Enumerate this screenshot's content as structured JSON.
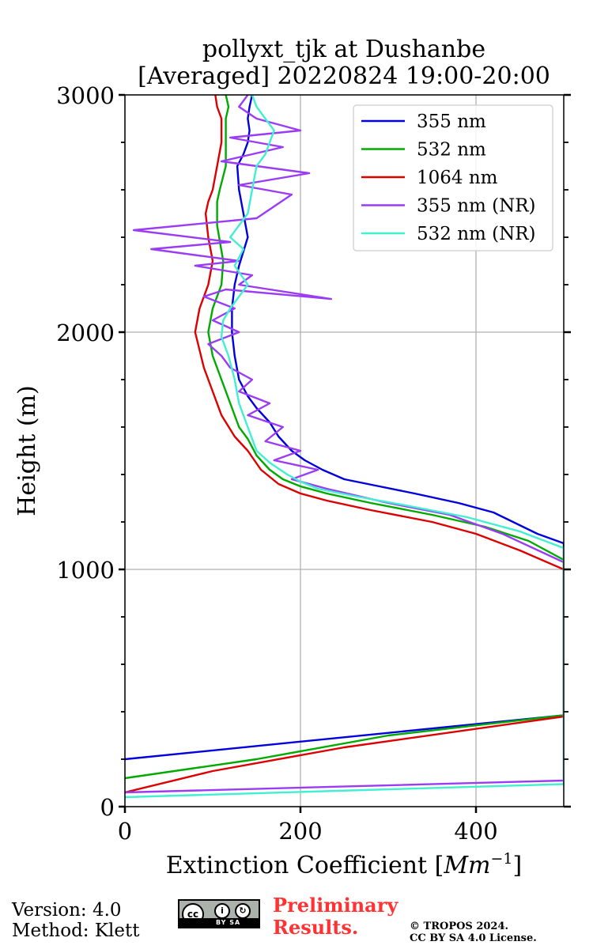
{
  "chart_data": {
    "type": "line",
    "title": [
      "pollyxt_tjk at Dushanbe",
      "[Averaged] 20220824 19:00-20:00"
    ],
    "xlabel": "Extinction Coefficient [",
    "xlabel_unit": "Mm",
    "xlabel_exp": "−1",
    "xlabel_close": "]",
    "ylabel": "Height (m)",
    "xlim": [
      0,
      500
    ],
    "ylim": [
      0,
      3000
    ],
    "xticks": [
      0,
      200,
      400
    ],
    "yticks": [
      0,
      1000,
      2000,
      3000
    ],
    "grid": true,
    "legend_position": "top-right",
    "series": [
      {
        "name": "355 nm",
        "color": "#0000dd",
        "x": [
          0,
          500,
          500,
          470,
          420,
          380,
          330,
          290,
          250,
          225,
          205,
          190,
          175,
          165,
          150,
          140,
          130,
          125,
          122,
          122,
          125,
          130,
          140,
          135,
          130,
          128,
          135,
          140,
          142,
          140,
          142,
          145
        ],
        "y": [
          200,
          385,
          1110,
          1150,
          1240,
          1280,
          1320,
          1350,
          1380,
          1420,
          1460,
          1500,
          1560,
          1620,
          1680,
          1730,
          1800,
          1900,
          2000,
          2100,
          2200,
          2280,
          2400,
          2500,
          2600,
          2700,
          2750,
          2800,
          2850,
          2900,
          2950,
          3000
        ]
      },
      {
        "name": "532 nm",
        "color": "#00aa00",
        "x": [
          0,
          150,
          300,
          500,
          500,
          460,
          410,
          350,
          280,
          230,
          200,
          180,
          165,
          150,
          140,
          130,
          120,
          110,
          100,
          95,
          100,
          110,
          112,
          105,
          105,
          108,
          115,
          115,
          115,
          118,
          115
        ],
        "y": [
          120,
          200,
          300,
          385,
          1040,
          1120,
          1180,
          1230,
          1280,
          1320,
          1350,
          1380,
          1420,
          1480,
          1550,
          1600,
          1700,
          1800,
          1900,
          2000,
          2100,
          2200,
          2300,
          2450,
          2550,
          2600,
          2700,
          2800,
          2900,
          2950,
          3000
        ]
      },
      {
        "name": "1064 nm",
        "color": "#dd0000",
        "x": [
          0,
          100,
          250,
          500,
          500,
          450,
          400,
          350,
          280,
          230,
          200,
          175,
          155,
          140,
          125,
          110,
          100,
          90,
          80,
          85,
          95,
          100,
          95,
          92,
          95,
          100,
          105,
          110,
          110,
          105,
          103
        ],
        "y": [
          60,
          150,
          250,
          380,
          1000,
          1080,
          1150,
          1200,
          1250,
          1290,
          1320,
          1360,
          1420,
          1500,
          1560,
          1650,
          1750,
          1850,
          2000,
          2100,
          2200,
          2300,
          2400,
          2500,
          2550,
          2600,
          2700,
          2800,
          2900,
          2950,
          3000
        ]
      },
      {
        "name": "355 nm (NR)",
        "color": "#9b3cf5",
        "x": [
          0,
          500,
          500,
          430,
          370,
          300,
          230,
          190,
          220,
          170,
          200,
          160,
          180,
          140,
          165,
          130,
          145,
          120,
          110,
          95,
          130,
          100,
          125,
          90,
          115,
          235,
          130,
          145,
          80,
          130,
          30,
          120,
          10,
          150,
          170,
          190,
          130,
          210,
          110,
          180,
          120,
          200,
          150,
          130,
          140
        ],
        "y": [
          60,
          110,
          1030,
          1150,
          1230,
          1280,
          1340,
          1380,
          1420,
          1460,
          1500,
          1540,
          1600,
          1650,
          1700,
          1750,
          1800,
          1850,
          1900,
          1950,
          2000,
          2050,
          2100,
          2150,
          2180,
          2140,
          2200,
          2240,
          2280,
          2300,
          2350,
          2380,
          2430,
          2480,
          2530,
          2580,
          2620,
          2670,
          2720,
          2780,
          2820,
          2850,
          2900,
          2950,
          3000
        ]
      },
      {
        "name": "532 nm (NR)",
        "color": "#40f0d0",
        "x": [
          0,
          500,
          500,
          450,
          390,
          320,
          260,
          220,
          200,
          185,
          165,
          150,
          140,
          130,
          125,
          118,
          110,
          112,
          120,
          130,
          140,
          125,
          135,
          120,
          140,
          145,
          150,
          160,
          170,
          160,
          150,
          145
        ],
        "y": [
          40,
          95,
          1090,
          1160,
          1220,
          1270,
          1310,
          1340,
          1370,
          1400,
          1450,
          1500,
          1600,
          1700,
          1800,
          1900,
          1980,
          2050,
          2100,
          2150,
          2200,
          2280,
          2350,
          2400,
          2500,
          2600,
          2700,
          2750,
          2850,
          2900,
          2950,
          3000
        ]
      }
    ]
  },
  "footer": {
    "version": "Version: 4.0",
    "method": "Method: Klett",
    "preliminary_line1": "Preliminary",
    "preliminary_line2": "Results.",
    "copyright_line1": "© TROPOS 2024.",
    "copyright_line2": "CC BY SA 4.0 License.",
    "cc_badge_text": "BY SA",
    "cc_logo_text": "cc"
  }
}
